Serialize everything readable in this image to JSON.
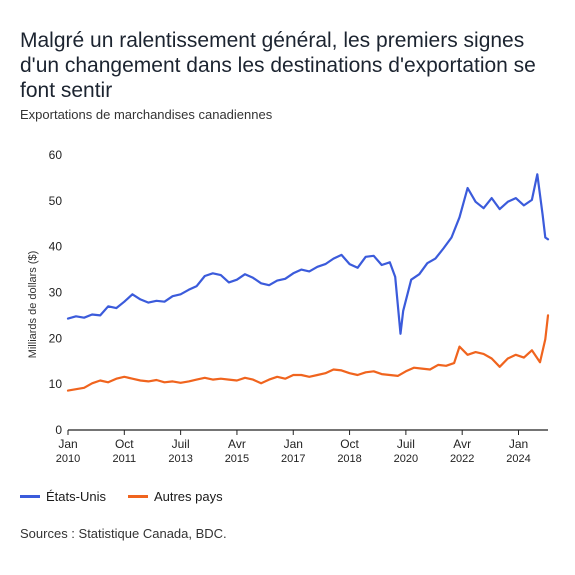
{
  "title": "Malgré un ralentissement général, les premiers signes d'un changement dans les destinations d'exportation se font sentir",
  "subtitle": "Exportations de marchandises canadiennes",
  "source": "Sources : Statistique Canada, BDC.",
  "colors": {
    "us": "#3b5bdb",
    "other": "#f0641e",
    "axis": "#222222"
  },
  "chart_data": {
    "type": "line",
    "title": "Malgré un ralentissement général, les premiers signes d'un changement dans les destinations d'exportation se font sentir",
    "subtitle": "Exportations de marchandises canadiennes",
    "xlabel": "",
    "ylabel": "Milliards de dollars ($)",
    "xlim": [
      "2010-01",
      "2024-12"
    ],
    "ylim": [
      0,
      60
    ],
    "yticks": [
      0,
      10,
      20,
      30,
      40,
      50,
      60
    ],
    "xticks": [
      {
        "date": "2010-01",
        "line1": "Jan",
        "line2": "2010"
      },
      {
        "date": "2011-10",
        "line1": "Oct",
        "line2": "2011"
      },
      {
        "date": "2013-07",
        "line1": "Juil",
        "line2": "2013"
      },
      {
        "date": "2015-04",
        "line1": "Avr",
        "line2": "2015"
      },
      {
        "date": "2017-01",
        "line1": "Jan",
        "line2": "2017"
      },
      {
        "date": "2018-10",
        "line1": "Oct",
        "line2": "2018"
      },
      {
        "date": "2020-07",
        "line1": "Juil",
        "line2": "2020"
      },
      {
        "date": "2022-04",
        "line1": "Avr",
        "line2": "2022"
      },
      {
        "date": "2024-01",
        "line1": "Jan",
        "line2": "2024"
      }
    ],
    "grid": false,
    "legend_position": "bottom-left",
    "series": [
      {
        "name": "États-Unis",
        "color": "#3b5bdb",
        "points": [
          [
            "2010-01",
            24.3
          ],
          [
            "2010-04",
            24.8
          ],
          [
            "2010-07",
            24.5
          ],
          [
            "2010-10",
            25.2
          ],
          [
            "2011-01",
            25.0
          ],
          [
            "2011-04",
            27.0
          ],
          [
            "2011-07",
            26.6
          ],
          [
            "2011-10",
            28.0
          ],
          [
            "2012-01",
            29.6
          ],
          [
            "2012-04",
            28.5
          ],
          [
            "2012-07",
            27.8
          ],
          [
            "2012-10",
            28.2
          ],
          [
            "2013-01",
            28.0
          ],
          [
            "2013-04",
            29.2
          ],
          [
            "2013-07",
            29.6
          ],
          [
            "2013-10",
            30.6
          ],
          [
            "2014-01",
            31.4
          ],
          [
            "2014-04",
            33.6
          ],
          [
            "2014-07",
            34.2
          ],
          [
            "2014-10",
            33.8
          ],
          [
            "2015-01",
            32.2
          ],
          [
            "2015-04",
            32.8
          ],
          [
            "2015-07",
            34.0
          ],
          [
            "2015-10",
            33.2
          ],
          [
            "2016-01",
            32.0
          ],
          [
            "2016-04",
            31.6
          ],
          [
            "2016-07",
            32.6
          ],
          [
            "2016-10",
            33.0
          ],
          [
            "2017-01",
            34.2
          ],
          [
            "2017-04",
            35.0
          ],
          [
            "2017-07",
            34.6
          ],
          [
            "2017-10",
            35.6
          ],
          [
            "2018-01",
            36.2
          ],
          [
            "2018-04",
            37.4
          ],
          [
            "2018-07",
            38.2
          ],
          [
            "2018-10",
            36.2
          ],
          [
            "2019-01",
            35.4
          ],
          [
            "2019-04",
            37.8
          ],
          [
            "2019-07",
            38.0
          ],
          [
            "2019-10",
            36.0
          ],
          [
            "2020-01",
            36.6
          ],
          [
            "2020-03",
            33.4
          ],
          [
            "2020-05",
            21.0
          ],
          [
            "2020-06",
            26.0
          ],
          [
            "2020-09",
            32.8
          ],
          [
            "2020-12",
            34.0
          ],
          [
            "2021-03",
            36.4
          ],
          [
            "2021-06",
            37.4
          ],
          [
            "2021-09",
            39.6
          ],
          [
            "2021-12",
            42.0
          ],
          [
            "2022-03",
            46.4
          ],
          [
            "2022-06",
            52.8
          ],
          [
            "2022-09",
            49.8
          ],
          [
            "2022-12",
            48.4
          ],
          [
            "2023-03",
            50.6
          ],
          [
            "2023-06",
            48.2
          ],
          [
            "2023-09",
            49.8
          ],
          [
            "2023-12",
            50.6
          ],
          [
            "2024-03",
            49.0
          ],
          [
            "2024-06",
            50.2
          ],
          [
            "2024-08",
            55.8
          ],
          [
            "2024-10",
            47.0
          ],
          [
            "2024-11",
            42.0
          ],
          [
            "2024-12",
            41.6
          ]
        ]
      },
      {
        "name": "Autres pays",
        "color": "#f0641e",
        "points": [
          [
            "2010-01",
            8.6
          ],
          [
            "2010-04",
            8.9
          ],
          [
            "2010-07",
            9.2
          ],
          [
            "2010-10",
            10.2
          ],
          [
            "2011-01",
            10.8
          ],
          [
            "2011-04",
            10.4
          ],
          [
            "2011-07",
            11.2
          ],
          [
            "2011-10",
            11.6
          ],
          [
            "2012-01",
            11.2
          ],
          [
            "2012-04",
            10.8
          ],
          [
            "2012-07",
            10.6
          ],
          [
            "2012-10",
            10.9
          ],
          [
            "2013-01",
            10.4
          ],
          [
            "2013-04",
            10.6
          ],
          [
            "2013-07",
            10.3
          ],
          [
            "2013-10",
            10.6
          ],
          [
            "2014-01",
            11.0
          ],
          [
            "2014-04",
            11.4
          ],
          [
            "2014-07",
            11.0
          ],
          [
            "2014-10",
            11.2
          ],
          [
            "2015-01",
            11.0
          ],
          [
            "2015-04",
            10.8
          ],
          [
            "2015-07",
            11.4
          ],
          [
            "2015-10",
            11.0
          ],
          [
            "2016-01",
            10.2
          ],
          [
            "2016-04",
            11.0
          ],
          [
            "2016-07",
            11.6
          ],
          [
            "2016-10",
            11.2
          ],
          [
            "2017-01",
            12.0
          ],
          [
            "2017-04",
            12.0
          ],
          [
            "2017-07",
            11.6
          ],
          [
            "2017-10",
            12.0
          ],
          [
            "2018-01",
            12.4
          ],
          [
            "2018-04",
            13.2
          ],
          [
            "2018-07",
            13.0
          ],
          [
            "2018-10",
            12.4
          ],
          [
            "2019-01",
            12.0
          ],
          [
            "2019-04",
            12.6
          ],
          [
            "2019-07",
            12.8
          ],
          [
            "2019-10",
            12.2
          ],
          [
            "2020-01",
            12.0
          ],
          [
            "2020-04",
            11.8
          ],
          [
            "2020-07",
            12.8
          ],
          [
            "2020-10",
            13.6
          ],
          [
            "2021-01",
            13.4
          ],
          [
            "2021-04",
            13.2
          ],
          [
            "2021-07",
            14.2
          ],
          [
            "2021-10",
            14.0
          ],
          [
            "2022-01",
            14.6
          ],
          [
            "2022-03",
            18.2
          ],
          [
            "2022-06",
            16.4
          ],
          [
            "2022-09",
            17.0
          ],
          [
            "2022-12",
            16.6
          ],
          [
            "2023-03",
            15.6
          ],
          [
            "2023-06",
            13.8
          ],
          [
            "2023-09",
            15.6
          ],
          [
            "2023-12",
            16.4
          ],
          [
            "2024-03",
            15.8
          ],
          [
            "2024-06",
            17.4
          ],
          [
            "2024-09",
            14.8
          ],
          [
            "2024-11",
            19.8
          ],
          [
            "2024-12",
            25.0
          ]
        ]
      }
    ]
  }
}
